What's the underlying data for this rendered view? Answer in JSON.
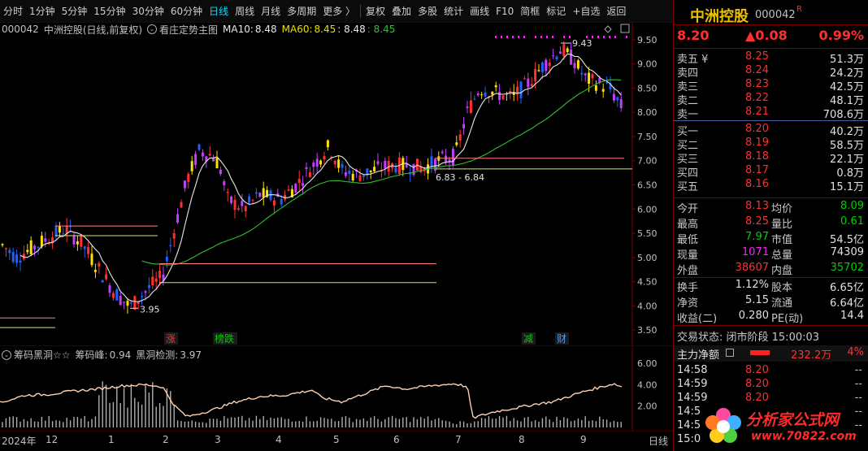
{
  "toolbar": {
    "items": [
      "分时",
      "1分钟",
      "5分钟",
      "15分钟",
      "30分钟",
      "60分钟",
      "日线",
      "周线",
      "月线",
      "多周期",
      "更多 〉",
      "复权",
      "叠加",
      "多股",
      "统计",
      "画线",
      "F10",
      "简框",
      "标记",
      "+自选",
      "返回"
    ],
    "active_index": 6
  },
  "chart_header": {
    "code": "000042",
    "name": "中洲控股",
    "mode": "(日线,前复权)",
    "indicator": "看庄定势主图",
    "ma10_label": "MA10:",
    "ma10_value": "8.48",
    "ma60_label": "MA60:",
    "ma60_value": "8.45",
    "extra1": ": 8.48",
    "extra2": ": 8.45"
  },
  "indicator_header": {
    "name": "筹码黑洞☆☆",
    "peak_label": "筹码峰:",
    "peak_value": "0.94",
    "detect_label": "黑洞检测:",
    "detect_value": "3.97"
  },
  "chart_data": {
    "type": "candlestick",
    "price_axis": {
      "ticks": [
        "9.50",
        "9.00",
        "8.50",
        "8.00",
        "7.50",
        "7.00",
        "6.50",
        "6.00",
        "5.50",
        "5.00",
        "4.50",
        "4.00",
        "3.50"
      ],
      "ylim": [
        3.3,
        9.75
      ]
    },
    "indicator_axis": {
      "ticks": [
        "6.00",
        "4.00",
        "2.00"
      ],
      "ylim": [
        0,
        7
      ]
    },
    "x_labels": [
      "2024年",
      "12",
      "1",
      "2",
      "3",
      "4",
      "5",
      "6",
      "7",
      "8",
      "9"
    ],
    "annotations": {
      "high_label": "9.43",
      "low_label": "3.95",
      "range_label": "6.83 - 6.84"
    },
    "event_markers": [
      {
        "text": "涨",
        "color": "#ff3030"
      },
      {
        "text": "榜跌",
        "color": "#00d000"
      },
      {
        "text": "减",
        "color": "#00d000"
      },
      {
        "text": "财",
        "color": "#40a0ff"
      }
    ],
    "colors": {
      "up": "#ff3030",
      "down": "#2060ff",
      "ma10": "#e8e8e8",
      "ma60": "#30c030",
      "volume": "#b0b0b0",
      "curve": "#ffd0b0"
    }
  },
  "right_panel": {
    "name": "中洲控股",
    "code": "000042",
    "flag": "R",
    "price": "8.20",
    "change": "▲0.08",
    "pct": "0.99%",
    "asks": [
      {
        "label": "卖五 ¥",
        "price": "8.25",
        "vol": "51.3万"
      },
      {
        "label": "卖四",
        "price": "8.24",
        "vol": "24.2万"
      },
      {
        "label": "卖三",
        "price": "8.23",
        "vol": "42.5万"
      },
      {
        "label": "卖二",
        "price": "8.22",
        "vol": "48.1万"
      },
      {
        "label": "卖一",
        "price": "8.21",
        "vol": "708.6万"
      }
    ],
    "bids": [
      {
        "label": "买一",
        "price": "8.20",
        "vol": "40.2万"
      },
      {
        "label": "买二",
        "price": "8.19",
        "vol": "58.5万"
      },
      {
        "label": "买三",
        "price": "8.18",
        "vol": "22.1万"
      },
      {
        "label": "买四",
        "price": "8.17",
        "vol": "0.8万"
      },
      {
        "label": "买五",
        "price": "8.16",
        "vol": "15.1万"
      }
    ],
    "stats1": [
      {
        "l1": "今开",
        "v1": "8.13",
        "c1": "red",
        "l2": "均价",
        "v2": "8.09",
        "c2": "green"
      },
      {
        "l1": "最高",
        "v1": "8.25",
        "c1": "red",
        "l2": "量比",
        "v2": "0.61",
        "c2": "green"
      },
      {
        "l1": "最低",
        "v1": "7.97",
        "c1": "green",
        "l2": "市值",
        "v2": "54.5亿",
        "c2": "white"
      },
      {
        "l1": "现量",
        "v1": "1071",
        "c1": "magenta",
        "l2": "总量",
        "v2": "74309",
        "c2": "white"
      },
      {
        "l1": "外盘",
        "v1": "38607",
        "c1": "red",
        "l2": "内盘",
        "v2": "35702",
        "c2": "green"
      }
    ],
    "stats2": [
      {
        "l1": "换手",
        "v1": "1.12%",
        "c1": "white",
        "l2": "股本",
        "v2": "6.65亿",
        "c2": "white"
      },
      {
        "l1": "净资",
        "v1": "5.15",
        "c1": "white",
        "l2": "流通",
        "v2": "6.64亿",
        "c2": "white"
      },
      {
        "l1": "收益(二)",
        "v1": "0.280",
        "c1": "white",
        "l2": "PE(动)",
        "v2": "14.4",
        "c2": "white"
      }
    ],
    "trade_status": "交易状态: 闭市阶段 15:00:03",
    "flow": {
      "label": "主力净额",
      "value": "232.2万",
      "pct": "4%"
    },
    "ticks": [
      {
        "t": "14:58",
        "p": "8.20",
        "d": "--"
      },
      {
        "t": "14:59",
        "p": "8.20",
        "d": "--"
      },
      {
        "t": "14:59",
        "p": "8.20",
        "d": "--"
      },
      {
        "t": "14:5",
        "p": "",
        "d": "--"
      },
      {
        "t": "14:5",
        "p": "",
        "d": "--"
      },
      {
        "t": "15:0",
        "p": "",
        "d": ""
      }
    ]
  },
  "xaxis": {
    "period_button": "日线"
  },
  "watermark": {
    "text": "分析家公式网",
    "url": "www.70822.com"
  }
}
